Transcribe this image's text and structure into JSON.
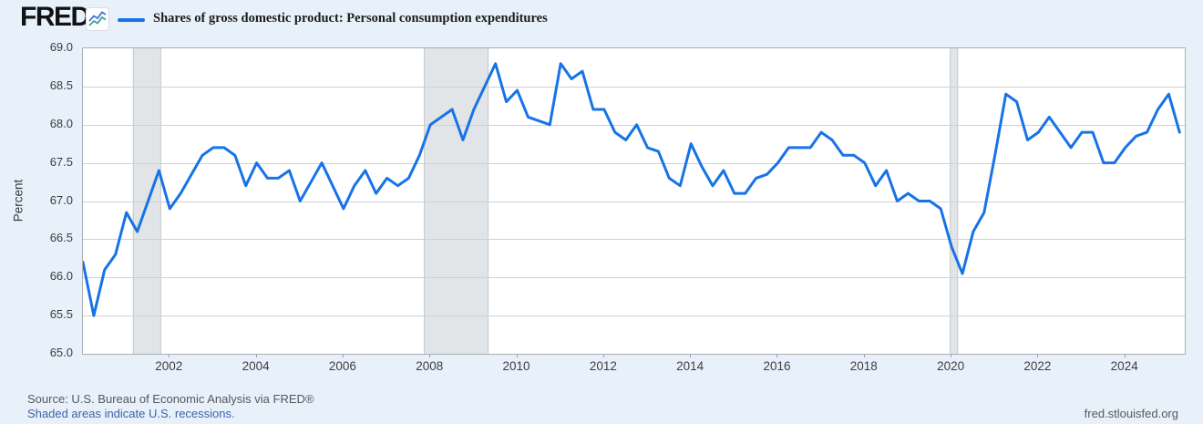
{
  "header": {
    "logo": "FRED",
    "registered": "®",
    "legend_label": "Shares of gross domestic product: Personal consumption expenditures"
  },
  "y_axis": {
    "title": "Percent",
    "ticks": [
      "69.0",
      "68.5",
      "68.0",
      "67.5",
      "67.0",
      "66.5",
      "66.0",
      "65.5",
      "65.0"
    ]
  },
  "x_axis": {
    "ticks": [
      "2002",
      "2004",
      "2006",
      "2008",
      "2010",
      "2012",
      "2014",
      "2016",
      "2018",
      "2020",
      "2022",
      "2024"
    ]
  },
  "footer": {
    "source": "Source: U.S. Bureau of Economic Analysis via FRED®",
    "note": "Shaded areas indicate U.S. recessions.",
    "site": "fred.stlouisfed.org"
  },
  "colors": {
    "line": "#1773e6",
    "background": "#e8f1fa",
    "plot_background": "#ffffff",
    "grid": "#cfd1d3",
    "plot_border": "#abafb3",
    "recession_fill": "#e2e5e7",
    "recession_edge": "#c5c9cc",
    "link": "#3c63a8",
    "gray_text": "#55585b",
    "logo_icon_blue": "#4272d7",
    "logo_icon_teal": "#3aa394"
  },
  "chart_data": {
    "type": "line",
    "title": "Shares of gross domestic product: Personal consumption expenditures",
    "ylabel": "Percent",
    "frequency": "Quarterly",
    "x_first": "2000-Q1",
    "x_last": "2025-Q2",
    "x_start_year": 2000,
    "x_step_years": 0.25,
    "x_range": [
      2000,
      2025.37
    ],
    "ylim": [
      65.0,
      69.0
    ],
    "y_tick_step": 0.5,
    "grid": "horizontal-only",
    "legend_position": "top-left",
    "values": [
      66.2,
      65.5,
      66.1,
      66.3,
      66.85,
      66.6,
      67.0,
      67.4,
      66.9,
      67.1,
      67.35,
      67.6,
      67.7,
      67.7,
      67.6,
      67.2,
      67.5,
      67.3,
      67.3,
      67.4,
      67.0,
      67.25,
      67.5,
      67.2,
      66.9,
      67.2,
      67.4,
      67.1,
      67.3,
      67.2,
      67.3,
      67.6,
      68.0,
      68.1,
      68.2,
      67.8,
      68.2,
      68.5,
      68.8,
      68.3,
      68.45,
      68.1,
      68.05,
      68.0,
      68.8,
      68.6,
      68.7,
      68.2,
      68.2,
      67.9,
      67.8,
      68.0,
      67.7,
      67.65,
      67.3,
      67.2,
      67.75,
      67.45,
      67.2,
      67.4,
      67.1,
      67.1,
      67.3,
      67.35,
      67.5,
      67.7,
      67.7,
      67.7,
      67.9,
      67.8,
      67.6,
      67.6,
      67.5,
      67.2,
      67.4,
      67.0,
      67.1,
      67.0,
      67.0,
      66.9,
      66.4,
      66.05,
      66.6,
      66.85,
      67.6,
      68.4,
      68.3,
      67.8,
      67.9,
      68.1,
      67.9,
      67.7,
      67.9,
      67.9,
      67.5,
      67.5,
      67.7,
      67.85,
      67.9,
      68.2,
      68.4,
      67.9
    ],
    "recession_bands": [
      {
        "from": 2001.15,
        "to": 2001.8
      },
      {
        "from": 2007.85,
        "to": 2009.34
      },
      {
        "from": 2019.96,
        "to": 2020.15
      }
    ]
  }
}
